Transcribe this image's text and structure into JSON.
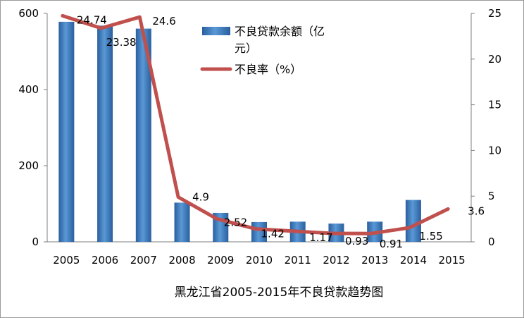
{
  "chart_data": {
    "type": "bar+line",
    "title": "黑龙江省2005-2015年不良贷款趋势图",
    "categories": [
      "2005",
      "2006",
      "2007",
      "2008",
      "2009",
      "2010",
      "2011",
      "2012",
      "2013",
      "2014",
      "2015"
    ],
    "series": [
      {
        "name": "不良贷款余额（亿元）",
        "type": "bar",
        "axis": "left",
        "color": "#2e6fb8",
        "values": [
          578,
          568,
          560,
          103,
          76,
          52,
          53,
          48,
          53,
          110,
          0
        ]
      },
      {
        "name": "不良率（%）",
        "type": "line",
        "axis": "right",
        "color": "#c0504d",
        "values": [
          24.74,
          23.38,
          24.6,
          4.9,
          2.52,
          1.42,
          1.17,
          0.93,
          0.91,
          1.55,
          3.6
        ],
        "labels": [
          "24.74",
          "23.38",
          "24.6",
          "4.9",
          "2.52",
          "1.42",
          "1.17",
          "0.93",
          "0.91",
          "1.55",
          "3.6"
        ]
      }
    ],
    "y_left": {
      "min": 0,
      "max": 600,
      "ticks": [
        "0",
        "200",
        "400",
        "600"
      ]
    },
    "y_right": {
      "min": 0,
      "max": 25,
      "ticks": [
        "0",
        "5",
        "10",
        "15",
        "20",
        "25"
      ]
    },
    "legend": {
      "position": "top-center",
      "bar_label_line1": "不良贷款余额（亿",
      "bar_label_line2": "元）",
      "line_label": "不良率（%）"
    },
    "grid": false
  }
}
